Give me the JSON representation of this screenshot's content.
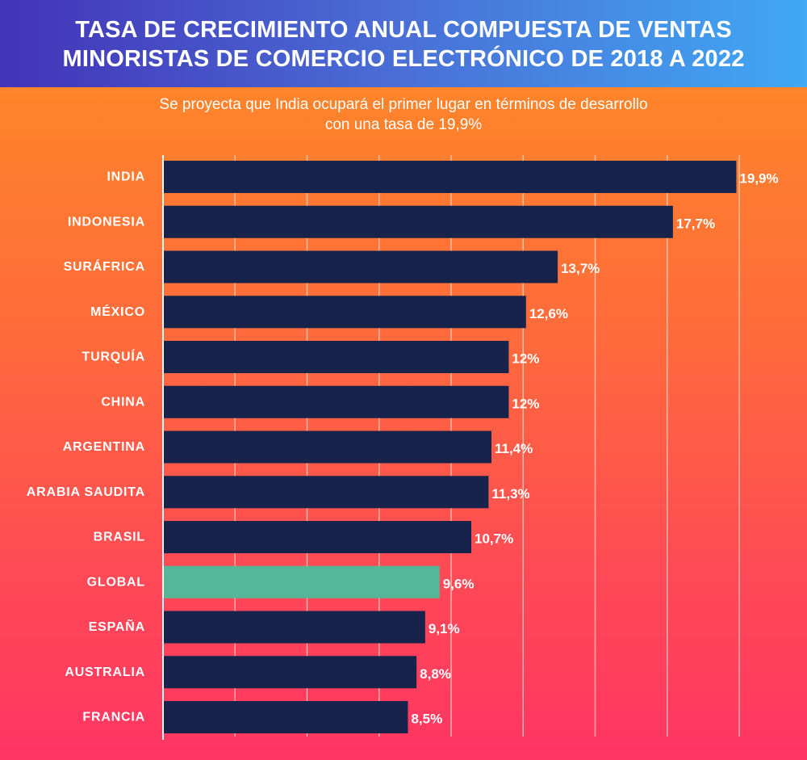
{
  "header": {
    "title_line1": "TASA DE CRECIMIENTO ANUAL COMPUESTA DE VENTAS",
    "title_line2": "MINORISTAS DE COMERCIO ELECTRÓNICO DE 2018 A 2022"
  },
  "subtitle": {
    "line1": "Se proyecta que India ocupará el primer lugar en términos de desarrollo",
    "line2": "con una tasa de 19,9%"
  },
  "colors": {
    "bar": "#18234b",
    "highlight_bar": "#55b798",
    "gridline": "#ffd5c4",
    "axis": "#ffffff"
  },
  "chart_data": {
    "type": "bar",
    "orientation": "horizontal",
    "title": "TASA DE CRECIMIENTO ANUAL COMPUESTA DE VENTAS MINORISTAS DE COMERCIO ELECTRÓNICO DE 2018 A 2022",
    "subtitle": "Se proyecta que India ocupará el primer lugar en términos de desarrollo con una tasa de 19,9%",
    "xlabel": "",
    "ylabel": "",
    "xlim": [
      0,
      20
    ],
    "grid": true,
    "grid_step": 2.5,
    "highlight_category": "GLOBAL",
    "categories": [
      "INDIA",
      "INDONESIA",
      "SURÁFRICA",
      "MÉXICO",
      "TURQUÍA",
      "CHINA",
      "ARGENTINA",
      "ARABIA SAUDITA",
      "BRASIL",
      "GLOBAL",
      "ESPAÑA",
      "AUSTRALIA",
      "FRANCIA"
    ],
    "values": [
      19.9,
      17.7,
      13.7,
      12.6,
      12,
      12,
      11.4,
      11.3,
      10.7,
      9.6,
      9.1,
      8.8,
      8.5
    ],
    "value_labels": [
      "19,9%",
      "17,7%",
      "13,7%",
      "12,6%",
      "12%",
      "12%",
      "11,4%",
      "11,3%",
      "10,7%",
      "9,6%",
      "9,1%",
      "8,8%",
      "8,5%"
    ]
  }
}
